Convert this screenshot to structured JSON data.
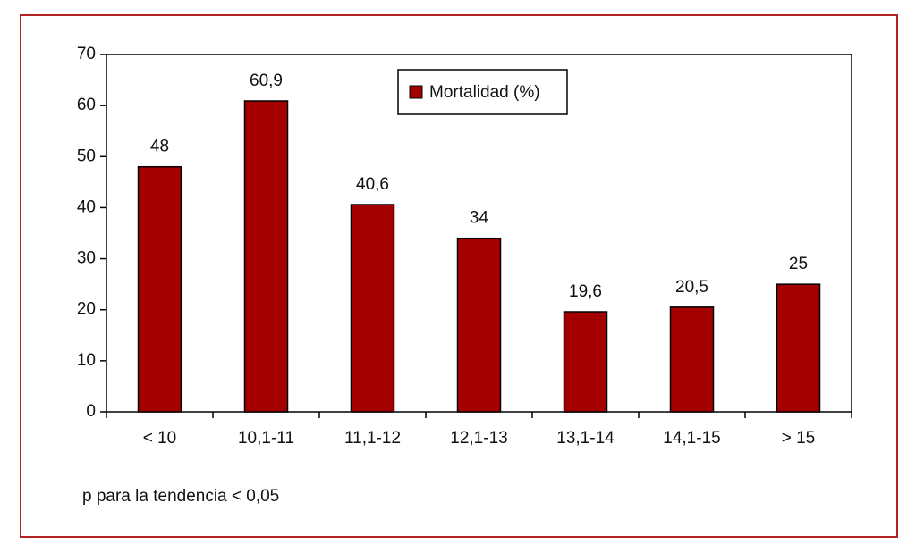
{
  "chart_data": {
    "type": "bar",
    "categories": [
      "< 10",
      "10,1-11",
      "11,1-12",
      "12,1-13",
      "13,1-14",
      "14,1-15",
      "> 15"
    ],
    "series": [
      {
        "name": "Mortalidad (%)",
        "color": "#a50000",
        "values": [
          48,
          60.9,
          40.6,
          34,
          19.6,
          20.5,
          25
        ],
        "value_labels": [
          "48",
          "60,9",
          "40,6",
          "34",
          "19,6",
          "20,5",
          "25"
        ]
      }
    ],
    "ylim": [
      0,
      70
    ],
    "yticks": [
      0,
      10,
      20,
      30,
      40,
      50,
      60,
      70
    ],
    "annotation": "p para la tendencia < 0,05"
  }
}
